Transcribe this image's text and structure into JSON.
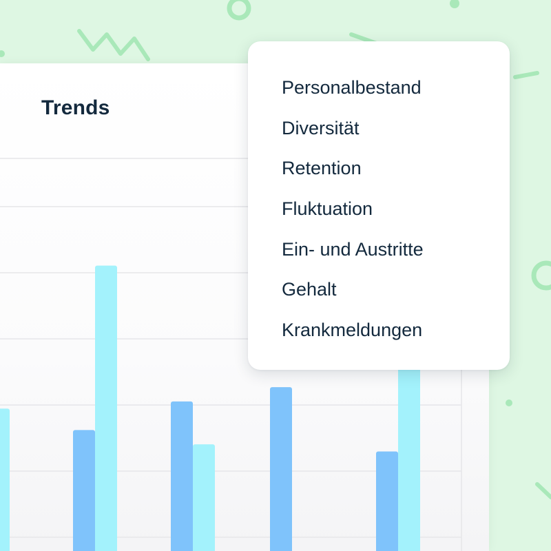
{
  "card": {
    "title": "Trends"
  },
  "menu": {
    "items": [
      "Personalbestand",
      "Diversität",
      "Retention",
      "Fluktuation",
      "Ein- und Austritte",
      "Gehalt",
      "Krankmeldungen"
    ]
  },
  "colors": {
    "background": "#def7e3",
    "decoration": "#a9e8b9",
    "series_dark": "#7fc3fb",
    "series_light": "#a3f2fc",
    "text": "#13293d"
  },
  "chart_data": {
    "type": "bar",
    "categories": [
      "",
      "",
      "",
      "",
      ""
    ],
    "series": [
      {
        "values": [
          null,
          1.5,
          1.9,
          2.1,
          1.2
        ]
      },
      {
        "values": [
          1.8,
          3.8,
          1.3,
          null,
          3.9
        ]
      }
    ],
    "ylim": [
      0,
      5.3
    ],
    "grid": true,
    "legend": "none"
  }
}
